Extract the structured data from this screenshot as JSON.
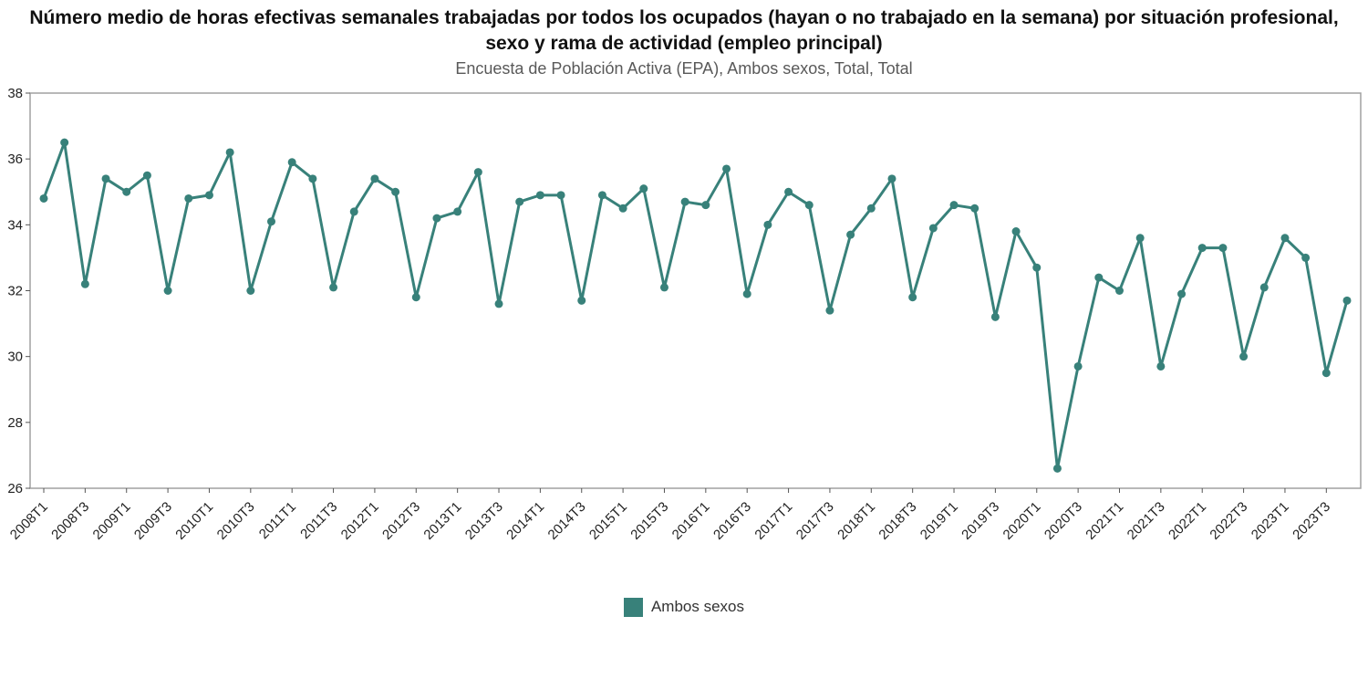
{
  "chart_data": {
    "type": "line",
    "title": "Número medio de horas efectivas semanales trabajadas por todos los ocupados (hayan o no trabajado en la semana) por situación profesional, sexo y rama de actividad (empleo principal)",
    "subtitle": "Encuesta de Población Activa (EPA), Ambos sexos, Total, Total",
    "xlabel": "",
    "ylabel": "",
    "ylim": [
      26,
      38
    ],
    "ytick_step": 2,
    "xtick_every": 2,
    "grid": false,
    "legend_position": "bottom",
    "marker": "circle",
    "categories": [
      "2008T1",
      "2008T2",
      "2008T3",
      "2008T4",
      "2009T1",
      "2009T2",
      "2009T3",
      "2009T4",
      "2010T1",
      "2010T2",
      "2010T3",
      "2010T4",
      "2011T1",
      "2011T2",
      "2011T3",
      "2011T4",
      "2012T1",
      "2012T2",
      "2012T3",
      "2012T4",
      "2013T1",
      "2013T2",
      "2013T3",
      "2013T4",
      "2014T1",
      "2014T2",
      "2014T3",
      "2014T4",
      "2015T1",
      "2015T2",
      "2015T3",
      "2015T4",
      "2016T1",
      "2016T2",
      "2016T3",
      "2016T4",
      "2017T1",
      "2017T2",
      "2017T3",
      "2017T4",
      "2018T1",
      "2018T2",
      "2018T3",
      "2018T4",
      "2019T1",
      "2019T2",
      "2019T3",
      "2019T4",
      "2020T1",
      "2020T2",
      "2020T3",
      "2020T4",
      "2021T1",
      "2021T2",
      "2021T3",
      "2021T4",
      "2022T1",
      "2022T2",
      "2022T3",
      "2022T4",
      "2023T1",
      "2023T2",
      "2023T3",
      "2023T4"
    ],
    "series": [
      {
        "name": "Ambos sexos",
        "color": "#38817A",
        "values": [
          34.8,
          36.5,
          32.2,
          35.4,
          35.0,
          35.5,
          32.0,
          34.8,
          34.9,
          36.2,
          32.0,
          34.1,
          35.9,
          35.4,
          32.1,
          34.4,
          35.4,
          35.0,
          31.8,
          34.2,
          34.4,
          35.6,
          31.6,
          34.7,
          34.9,
          34.9,
          31.7,
          34.9,
          34.5,
          35.1,
          32.1,
          34.7,
          34.6,
          35.7,
          31.9,
          34.0,
          35.0,
          34.6,
          31.4,
          33.7,
          34.5,
          35.4,
          31.8,
          33.9,
          34.6,
          34.5,
          31.2,
          33.8,
          32.7,
          26.6,
          29.7,
          32.4,
          32.0,
          33.6,
          29.7,
          31.9,
          33.3,
          33.3,
          30.0,
          32.1,
          33.6,
          33.0,
          29.5,
          31.7
        ]
      }
    ]
  }
}
